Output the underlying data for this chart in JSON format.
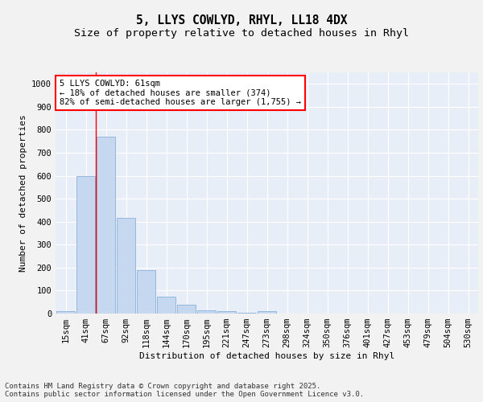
{
  "title_line1": "5, LLYS COWLYD, RHYL, LL18 4DX",
  "title_line2": "Size of property relative to detached houses in Rhyl",
  "xlabel": "Distribution of detached houses by size in Rhyl",
  "ylabel": "Number of detached properties",
  "categories": [
    "15sqm",
    "41sqm",
    "67sqm",
    "92sqm",
    "118sqm",
    "144sqm",
    "170sqm",
    "195sqm",
    "221sqm",
    "247sqm",
    "273sqm",
    "298sqm",
    "324sqm",
    "350sqm",
    "376sqm",
    "401sqm",
    "427sqm",
    "453sqm",
    "479sqm",
    "504sqm",
    "530sqm"
  ],
  "values": [
    10,
    600,
    770,
    415,
    190,
    75,
    40,
    15,
    10,
    5,
    10,
    0,
    0,
    0,
    0,
    0,
    0,
    0,
    0,
    0,
    0
  ],
  "bar_color": "#c5d8f0",
  "bar_edge_color": "#8ab0d8",
  "background_color": "#e8eef8",
  "grid_color": "#ffffff",
  "fig_background": "#f2f2f2",
  "ylim": [
    0,
    1050
  ],
  "yticks": [
    0,
    100,
    200,
    300,
    400,
    500,
    600,
    700,
    800,
    900,
    1000
  ],
  "vline_color": "red",
  "annotation_text": "5 LLYS COWLYD: 61sqm\n← 18% of detached houses are smaller (374)\n82% of semi-detached houses are larger (1,755) →",
  "footer_text": "Contains HM Land Registry data © Crown copyright and database right 2025.\nContains public sector information licensed under the Open Government Licence v3.0.",
  "title_fontsize": 10.5,
  "subtitle_fontsize": 9.5,
  "axis_label_fontsize": 8,
  "tick_fontsize": 7.5,
  "annotation_fontsize": 7.5,
  "footer_fontsize": 6.5
}
